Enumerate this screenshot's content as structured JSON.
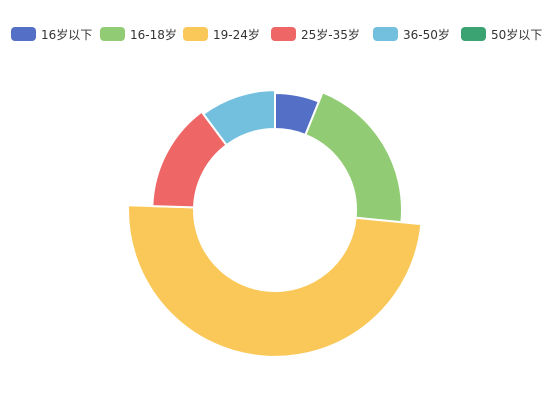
{
  "chart_data": {
    "type": "pie",
    "variant": "donut",
    "title": "",
    "legend_position": "top",
    "categories": [
      "16岁以下",
      "16-18岁",
      "19-24岁",
      "25岁-35岁",
      "36-50岁",
      "50岁以下"
    ],
    "values": [
      3,
      10,
      24,
      7,
      5,
      0
    ],
    "colors": [
      "#5470c6",
      "#91cc75",
      "#fac858",
      "#ee6666",
      "#73c0de",
      "#3ba272"
    ]
  }
}
